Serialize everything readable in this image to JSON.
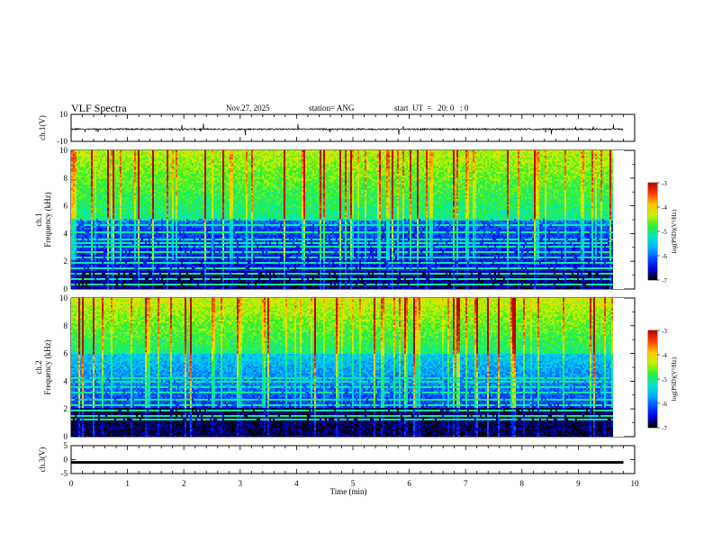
{
  "header": {
    "title": "VLF Spectra",
    "date": "Nov.27, 2025",
    "station": "station= ANG",
    "start": "start  UT  =   20: 0   : 0"
  },
  "chart_data": [
    {
      "type": "line",
      "panel": "ch1-waveform",
      "ylabel": "ch.1(V)",
      "ylim": [
        -10,
        10
      ],
      "yticks": [
        10,
        -10
      ],
      "xlim": [
        0,
        10
      ],
      "x_data_end": 9.8,
      "baseline": -1,
      "noise_amplitude": 1
    },
    {
      "type": "heatmap",
      "panel": "ch1-spectrogram",
      "ylabel_top": "ch.1",
      "ylabel": "Frequency (kHz)",
      "ylim": [
        0,
        10
      ],
      "yticks": [
        0,
        2,
        4,
        6,
        8,
        10
      ],
      "xlim": [
        0,
        10
      ],
      "x_data_end": 9.8,
      "colorbar": {
        "label": "log(PSD)(V²/Hz)",
        "range": [
          -7,
          -3
        ],
        "ticks": [
          -3,
          -4,
          -5,
          -6,
          -7
        ]
      },
      "interference_lines_khz": [
        0.3,
        0.6,
        1.1,
        1.4,
        1.9,
        2.3,
        2.6,
        3.0,
        3.3,
        3.6,
        4.1,
        4.6,
        5.0
      ]
    },
    {
      "type": "heatmap",
      "panel": "ch2-spectrogram",
      "ylabel_top": "ch.2",
      "ylabel": "Frequency (kHz)",
      "ylim": [
        0,
        10
      ],
      "yticks": [
        0,
        2,
        4,
        6,
        8,
        10
      ],
      "xlim": [
        0,
        10
      ],
      "x_data_end": 9.8,
      "colorbar": {
        "label": "log(PSD)(V²/Hz)",
        "range": [
          -7,
          -3
        ],
        "ticks": [
          -3,
          -4,
          -5,
          -6,
          -7
        ]
      },
      "interference_lines_khz": [
        1.2,
        1.5,
        1.9,
        2.3,
        2.6,
        3.1,
        3.5,
        4.0,
        4.2
      ]
    },
    {
      "type": "line",
      "panel": "ch3-waveform",
      "ylabel": "ch.3(V)",
      "ylim": [
        -5,
        5
      ],
      "yticks": [
        5,
        0,
        -5
      ],
      "xlim": [
        0,
        10
      ],
      "x_data_end": 9.8,
      "baseline": -1,
      "xlabel": "Time (min)",
      "xticks": [
        0,
        1,
        2,
        3,
        4,
        5,
        6,
        7,
        8,
        9,
        10
      ]
    }
  ],
  "colors": {
    "colormap": [
      "#000000",
      "#0000e0",
      "#0050ff",
      "#00b4ff",
      "#00e8c0",
      "#30f030",
      "#c8f000",
      "#ffc800",
      "#ff4000",
      "#c00000"
    ],
    "trace": "#000000",
    "axes": "#000000"
  }
}
